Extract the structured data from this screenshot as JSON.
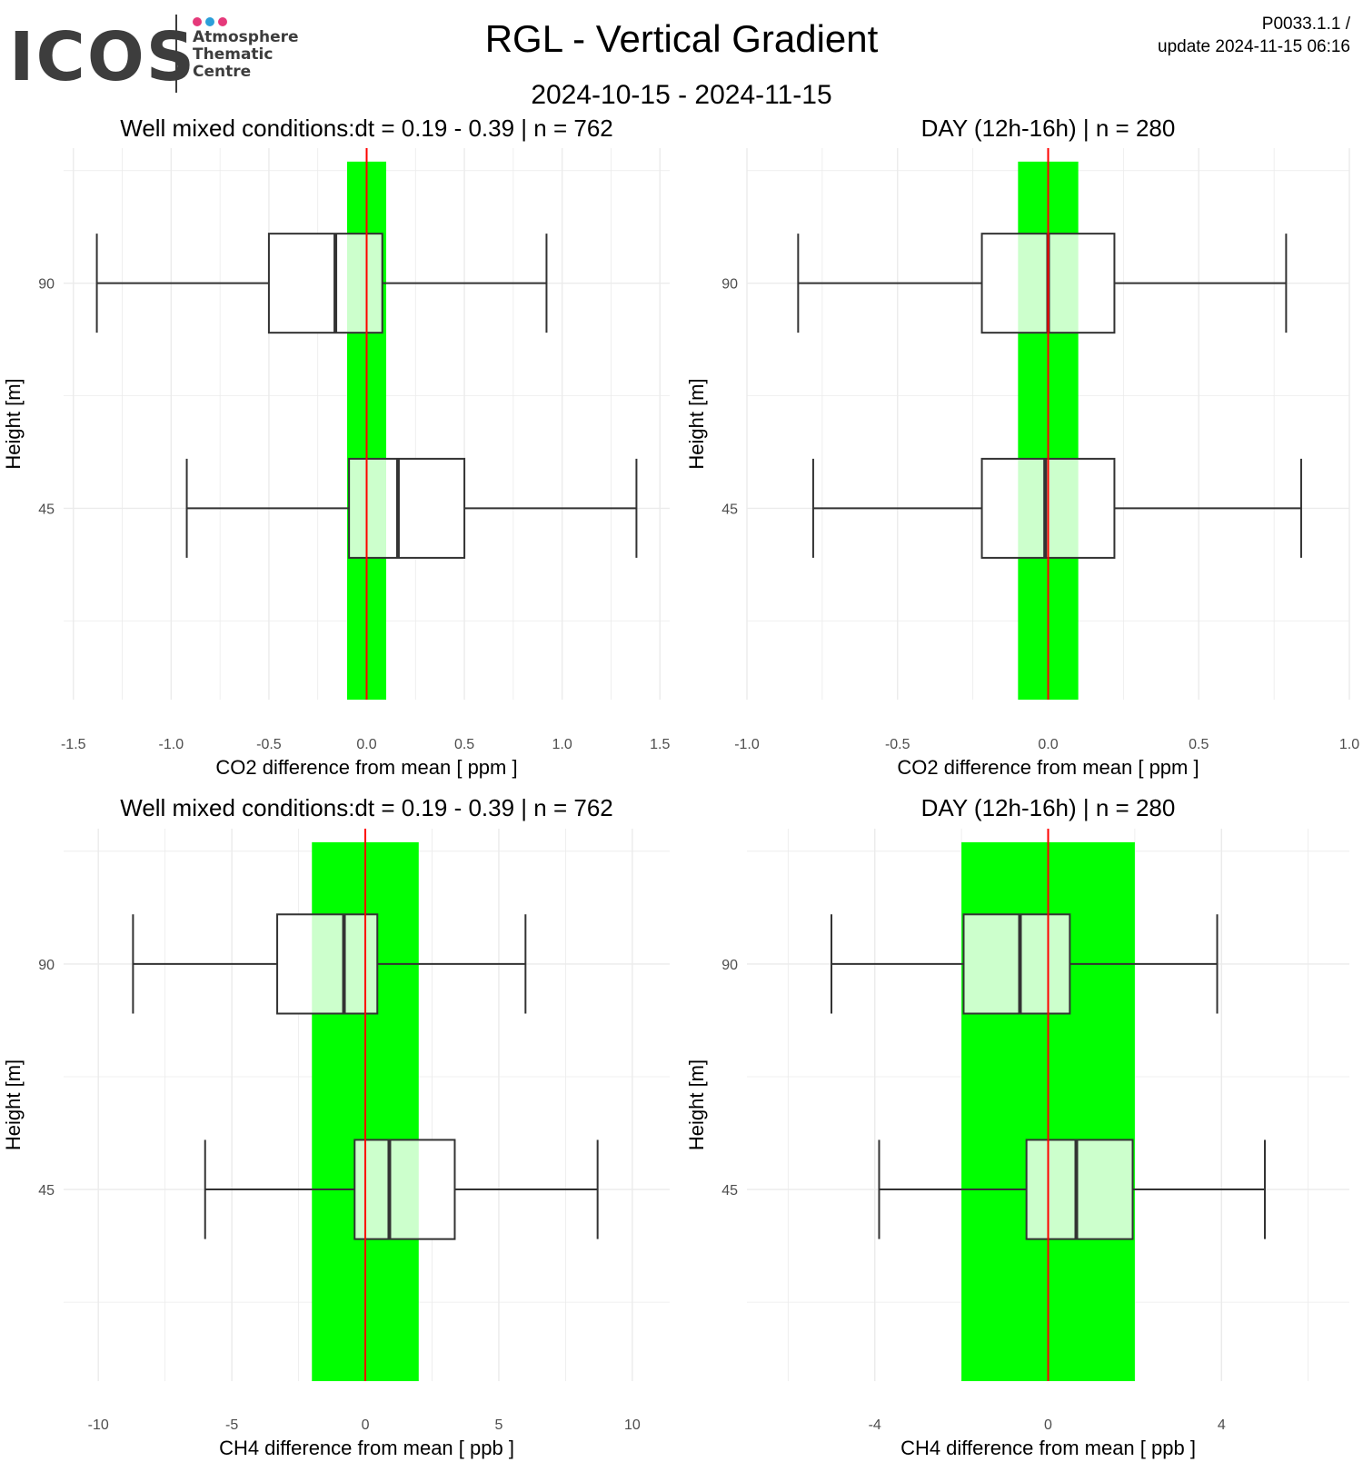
{
  "header": {
    "logo_word": "ICOS",
    "logo_lines": [
      "Atmosphere",
      "Thematic",
      "Centre"
    ],
    "logo_dot_colors": [
      "#e5397a",
      "#2c9fd9",
      "#e5397a"
    ],
    "title": "RGL - Vertical Gradient",
    "subtitle": "2024-10-15 - 2024-11-15",
    "version": "P0033.1.1 /",
    "update": "update  2024-11-15 06:16"
  },
  "colors": {
    "band": "#00ff00",
    "band_light": "#ccffcc",
    "zero_line": "#ff0000",
    "grid": "#ebebeb",
    "box_stroke": "#333333"
  },
  "chart_data": [
    {
      "type": "boxplot",
      "title": "Well mixed conditions:dt = 0.19 - 0.39 | n = 762",
      "xlabel": "CO2  difference from mean [ ppm ]",
      "ylabel": "Height [m]",
      "xlim": [
        -1.55,
        1.55
      ],
      "xticks": [
        -1.5,
        -1.0,
        -0.5,
        0.0,
        0.5,
        1.0,
        1.5
      ],
      "xtick_labels": [
        "-1.5",
        "-1.0",
        "-0.5",
        "0.0",
        "0.5",
        "1.0",
        "1.5"
      ],
      "yticks": [
        90,
        45
      ],
      "ytick_labels": [
        "90",
        "45"
      ],
      "band": [
        -0.1,
        0.1
      ],
      "boxes": [
        {
          "height": "90",
          "min": -1.38,
          "q1": -0.5,
          "median": -0.16,
          "q3": 0.08,
          "max": 0.92
        },
        {
          "height": "45",
          "min": -0.92,
          "q1": -0.09,
          "median": 0.16,
          "q3": 0.5,
          "max": 1.38
        }
      ]
    },
    {
      "type": "boxplot",
      "title": "DAY (12h-16h) | n = 280",
      "xlabel": "CO2  difference from mean [ ppm ]",
      "ylabel": "Height [m]",
      "xlim": [
        -1.0,
        1.0
      ],
      "xticks": [
        -1.0,
        -0.5,
        0.0,
        0.5,
        1.0
      ],
      "xtick_labels": [
        "-1.0",
        "-0.5",
        "0.0",
        "0.5",
        "1.0"
      ],
      "yticks": [
        90,
        45
      ],
      "ytick_labels": [
        "90",
        "45"
      ],
      "band": [
        -0.1,
        0.1
      ],
      "boxes": [
        {
          "height": "90",
          "min": -0.83,
          "q1": -0.22,
          "median": 0.0,
          "q3": 0.22,
          "max": 0.79
        },
        {
          "height": "45",
          "min": -0.78,
          "q1": -0.22,
          "median": -0.01,
          "q3": 0.22,
          "max": 0.84
        }
      ]
    },
    {
      "type": "boxplot",
      "title": "Well mixed conditions:dt = 0.19 - 0.39 | n = 762",
      "xlabel": "CH4  difference from mean [ ppb ]",
      "ylabel": "Height [m]",
      "xlim": [
        -11.3,
        11.4
      ],
      "xticks": [
        -10,
        -5,
        0,
        5,
        10
      ],
      "xtick_labels": [
        "-10",
        "-5",
        "0",
        "5",
        "10"
      ],
      "yticks": [
        90,
        45
      ],
      "ytick_labels": [
        "90",
        "45"
      ],
      "band": [
        -2,
        2
      ],
      "boxes": [
        {
          "height": "90",
          "min": -8.7,
          "q1": -3.3,
          "median": -0.8,
          "q3": 0.45,
          "max": 6.0
        },
        {
          "height": "45",
          "min": -6.0,
          "q1": -0.4,
          "median": 0.9,
          "q3": 3.35,
          "max": 8.7
        }
      ]
    },
    {
      "type": "boxplot",
      "title": "DAY (12h-16h) | n = 280",
      "xlabel": "CH4  difference from mean [ ppb ]",
      "ylabel": "Height [m]",
      "xlim": [
        -6.95,
        6.95
      ],
      "xticks": [
        -4,
        0,
        4
      ],
      "xtick_labels": [
        "-4",
        "0",
        "4"
      ],
      "yticks": [
        90,
        45
      ],
      "ytick_labels": [
        "90",
        "45"
      ],
      "band": [
        -2,
        2
      ],
      "boxes": [
        {
          "height": "90",
          "min": -5.0,
          "q1": -1.95,
          "median": -0.65,
          "q3": 0.5,
          "max": 3.9
        },
        {
          "height": "45",
          "min": -3.9,
          "q1": -0.5,
          "median": 0.65,
          "q3": 1.95,
          "max": 5.0
        }
      ]
    }
  ]
}
